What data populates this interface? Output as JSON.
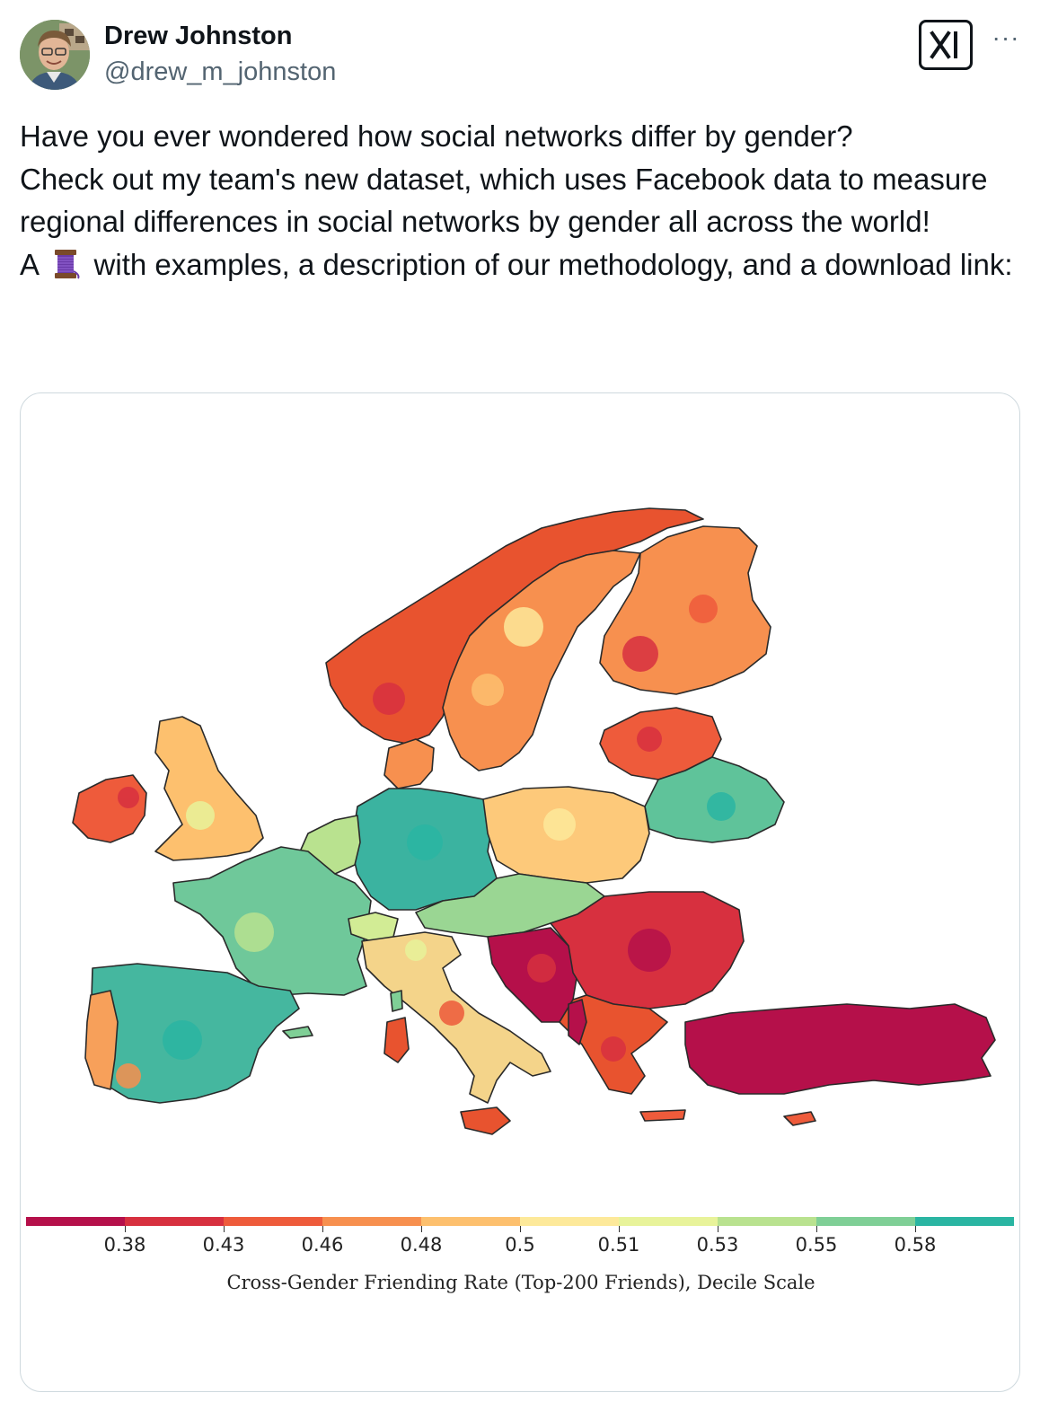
{
  "author": {
    "name": "Drew Johnston",
    "handle": "@drew_m_johnston"
  },
  "header": {
    "logo_icon": "grok-x-logo-icon",
    "more_label": "···"
  },
  "tweet": {
    "line1": "Have you ever wondered how social networks differ by gender?",
    "line2": "Check out my team's new dataset, which uses Facebook data to measure regional differences in social networks by gender all across the world!",
    "line3_prefix": "A",
    "line3_emoji": "spool-of-thread-emoji",
    "line3_suffix": "with examples, a description of our methodology, and a download link:"
  },
  "chart_data": {
    "type": "heatmap",
    "title": "",
    "region": "Europe",
    "colorbar": {
      "title": "Cross-Gender Friending Rate (Top-200 Friends), Decile Scale",
      "ticks": [
        "0.38",
        "0.43",
        "0.46",
        "0.48",
        "0.5",
        "0.51",
        "0.53",
        "0.55",
        "0.58"
      ],
      "colors": [
        "#b5104a",
        "#d7303f",
        "#ee5b3b",
        "#f7904f",
        "#fdc06e",
        "#fde99a",
        "#e8f39a",
        "#b9e28f",
        "#7fcf96",
        "#2ab5a2"
      ]
    }
  }
}
